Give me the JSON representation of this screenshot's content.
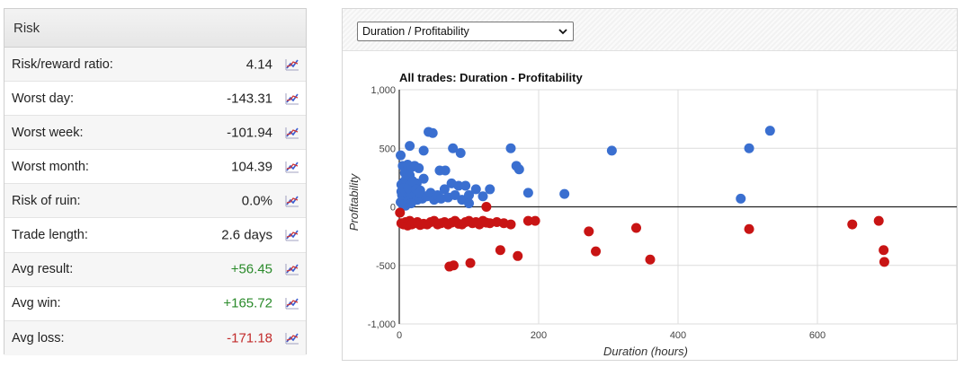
{
  "risk": {
    "title": "Risk",
    "rows": [
      {
        "label": "Risk/reward ratio:",
        "value": "4.14",
        "tone": ""
      },
      {
        "label": "Worst day:",
        "value": "-143.31",
        "tone": ""
      },
      {
        "label": "Worst week:",
        "value": "-101.94",
        "tone": ""
      },
      {
        "label": "Worst month:",
        "value": "104.39",
        "tone": ""
      },
      {
        "label": "Risk of ruin:",
        "value": "0.0%",
        "tone": ""
      },
      {
        "label": "Trade length:",
        "value": "2.6 days",
        "tone": ""
      },
      {
        "label": "Avg result:",
        "value": "+56.45",
        "tone": "pos"
      },
      {
        "label": "Avg win:",
        "value": "+165.72",
        "tone": "pos"
      },
      {
        "label": "Avg loss:",
        "value": "-171.18",
        "tone": "neg"
      }
    ],
    "icon": "line-chart-icon"
  },
  "chart_selector": {
    "selected": "Duration / Profitability"
  },
  "chart_data": {
    "type": "scatter",
    "title": "All trades: Duration - Profitability",
    "xlabel": "Duration (hours)",
    "ylabel": "Profitability",
    "xlim": [
      0,
      800
    ],
    "ylim": [
      -1000,
      1000
    ],
    "x_ticks": [
      0,
      200,
      400,
      600
    ],
    "y_ticks": [
      -1000,
      -500,
      0,
      500,
      1000
    ],
    "x_tick_labels": [
      "0",
      "200",
      "400",
      "600"
    ],
    "y_tick_labels": [
      "-1,000",
      "-500",
      "0",
      "500",
      "1,000"
    ],
    "grid": true,
    "colors": {
      "win": "#3a6fd0",
      "loss": "#c81414"
    },
    "series": [
      {
        "key": "win",
        "points": [
          [
            2,
            440
          ],
          [
            5,
            350
          ],
          [
            8,
            290
          ],
          [
            12,
            360
          ],
          [
            15,
            270
          ],
          [
            18,
            340
          ],
          [
            22,
            350
          ],
          [
            28,
            330
          ],
          [
            35,
            240
          ],
          [
            10,
            150
          ],
          [
            3,
            190
          ],
          [
            6,
            210
          ],
          [
            9,
            230
          ],
          [
            14,
            180
          ],
          [
            20,
            170
          ],
          [
            25,
            200
          ],
          [
            30,
            140
          ],
          [
            4,
            100
          ],
          [
            7,
            80
          ],
          [
            11,
            120
          ],
          [
            16,
            110
          ],
          [
            21,
            90
          ],
          [
            26,
            60
          ],
          [
            33,
            70
          ],
          [
            38,
            90
          ],
          [
            2,
            40
          ],
          [
            5,
            20
          ],
          [
            9,
            10
          ],
          [
            13,
            50
          ],
          [
            17,
            30
          ],
          [
            3,
            130
          ],
          [
            6,
            160
          ],
          [
            13,
            160
          ],
          [
            19,
            220
          ],
          [
            24,
            150
          ],
          [
            29,
            120
          ],
          [
            40,
            90
          ],
          [
            45,
            120
          ],
          [
            50,
            60
          ],
          [
            55,
            100
          ],
          [
            60,
            70
          ],
          [
            65,
            150
          ],
          [
            70,
            80
          ],
          [
            75,
            200
          ],
          [
            80,
            100
          ],
          [
            85,
            180
          ],
          [
            90,
            60
          ],
          [
            95,
            180
          ],
          [
            100,
            100
          ],
          [
            110,
            150
          ],
          [
            120,
            90
          ],
          [
            130,
            150
          ],
          [
            15,
            520
          ],
          [
            35,
            480
          ],
          [
            42,
            640
          ],
          [
            48,
            630
          ],
          [
            58,
            310
          ],
          [
            66,
            310
          ],
          [
            77,
            500
          ],
          [
            88,
            460
          ],
          [
            100,
            30
          ],
          [
            160,
            500
          ],
          [
            168,
            350
          ],
          [
            172,
            320
          ],
          [
            185,
            120
          ],
          [
            237,
            110
          ],
          [
            305,
            480
          ],
          [
            490,
            70
          ],
          [
            502,
            500
          ],
          [
            532,
            650
          ]
        ]
      },
      {
        "key": "loss",
        "points": [
          [
            1,
            -50
          ],
          [
            3,
            -140
          ],
          [
            6,
            -150
          ],
          [
            9,
            -130
          ],
          [
            12,
            -160
          ],
          [
            15,
            -120
          ],
          [
            18,
            -150
          ],
          [
            22,
            -140
          ],
          [
            26,
            -130
          ],
          [
            30,
            -155
          ],
          [
            35,
            -145
          ],
          [
            40,
            -150
          ],
          [
            45,
            -130
          ],
          [
            50,
            -120
          ],
          [
            55,
            -150
          ],
          [
            60,
            -140
          ],
          [
            65,
            -130
          ],
          [
            70,
            -150
          ],
          [
            75,
            -135
          ],
          [
            80,
            -120
          ],
          [
            85,
            -145
          ],
          [
            90,
            -150
          ],
          [
            95,
            -130
          ],
          [
            100,
            -120
          ],
          [
            105,
            -140
          ],
          [
            110,
            -130
          ],
          [
            115,
            -150
          ],
          [
            120,
            -120
          ],
          [
            125,
            -135
          ],
          [
            130,
            -140
          ],
          [
            140,
            -130
          ],
          [
            150,
            -140
          ],
          [
            160,
            -150
          ],
          [
            185,
            -120
          ],
          [
            195,
            -120
          ],
          [
            125,
            0
          ],
          [
            145,
            -370
          ],
          [
            170,
            -420
          ],
          [
            72,
            -510
          ],
          [
            78,
            -500
          ],
          [
            102,
            -480
          ],
          [
            272,
            -210
          ],
          [
            282,
            -380
          ],
          [
            340,
            -180
          ],
          [
            360,
            -450
          ],
          [
            502,
            -190
          ],
          [
            650,
            -150
          ],
          [
            688,
            -120
          ],
          [
            695,
            -370
          ],
          [
            696,
            -470
          ]
        ]
      }
    ]
  }
}
